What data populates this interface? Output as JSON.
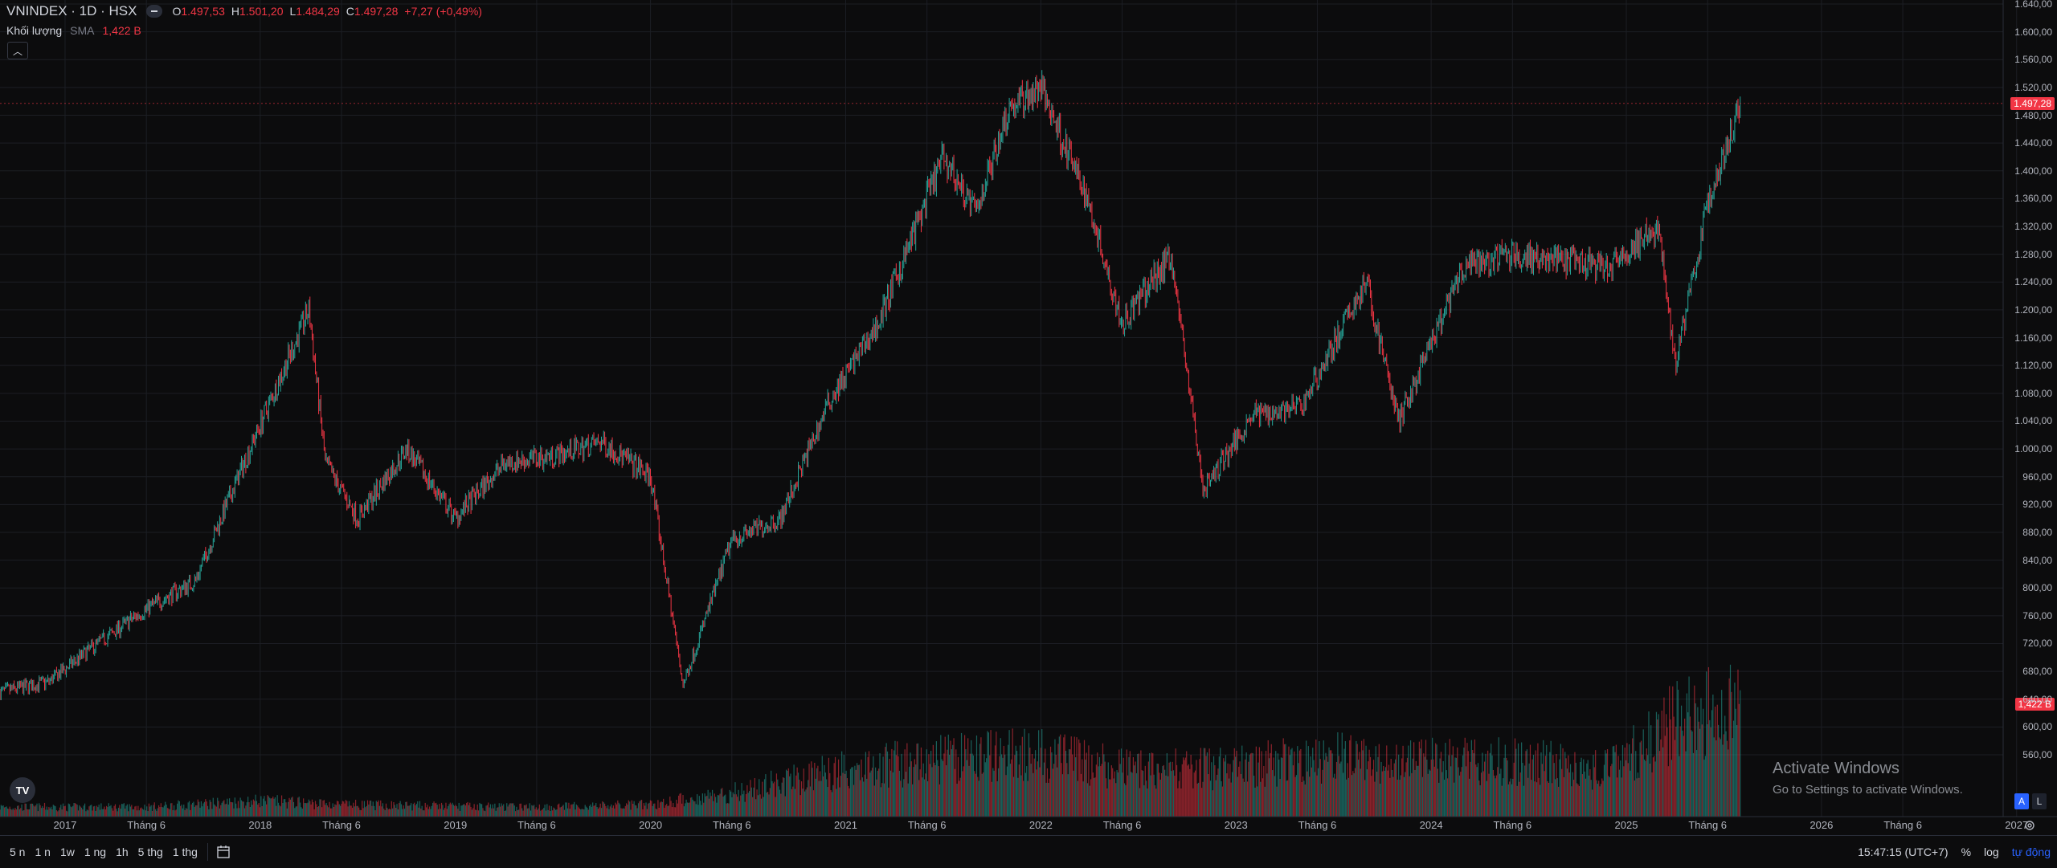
{
  "legend": {
    "symbol": "VNINDEX · 1D · HSX",
    "ohlc": [
      {
        "k": "O",
        "v": "1.497,53"
      },
      {
        "k": "H",
        "v": "1.501,20"
      },
      {
        "k": "L",
        "v": "1.484,29"
      },
      {
        "k": "C",
        "v": "1.497,28"
      }
    ],
    "change": "+7,27 (+0,49%)"
  },
  "volume_legend": {
    "label": "Khối lượng",
    "sma": "SMA",
    "value": "1,422 B"
  },
  "price_axis_labels": [
    "1.640,00",
    "1.600,00",
    "1.560,00",
    "1.520,00",
    "1.480,00",
    "1.440,00",
    "1.400,00",
    "1.360,00",
    "1.320,00",
    "1.280,00",
    "1.240,00",
    "1.200,00",
    "1.160,00",
    "1.120,00",
    "1.080,00",
    "1.040,00",
    "1.000,00",
    "960,00",
    "920,00",
    "880,00",
    "840,00",
    "800,00",
    "760,00",
    "720,00",
    "680,00",
    "640,00",
    "600,00",
    "560,00"
  ],
  "price_tag": "1.497,28",
  "volume_tag": "1,422 B",
  "time_axis_labels": [
    "2017",
    "Tháng 6",
    "2018",
    "Tháng 6",
    "2019",
    "Tháng 6",
    "2020",
    "Tháng 6",
    "2021",
    "Tháng 6",
    "2022",
    "Tháng 6",
    "2023",
    "Tháng 6",
    "2024",
    "Tháng 6",
    "2025",
    "Tháng 6",
    "2026",
    "Tháng 6",
    "2027"
  ],
  "bottom_bar": {
    "ranges": [
      "5 n",
      "1 n",
      "1w",
      "1 ng",
      "1h",
      "5 thg",
      "1 thg"
    ],
    "time": "15:47:15 (UTC+7)",
    "percent": "%",
    "log": "log",
    "auto": "tự động"
  },
  "watermark": {
    "title": "Activate Windows",
    "subtitle": "Go to Settings to activate Windows."
  },
  "axis_buttons": {
    "a": "A",
    "l": "L"
  },
  "logo": "TV",
  "colors": {
    "up": "#26a69a",
    "down": "#f23645",
    "background": "#0c0c0d",
    "grid": "#1c1e24",
    "accent": "#2962ff"
  },
  "chart_data": {
    "type": "candlestick",
    "title": "VNINDEX · 1D · HSX",
    "ylim": [
      540,
      1650
    ],
    "x_range": [
      "2016-09",
      "2027-02"
    ],
    "y_scale": "linear",
    "grid": true,
    "series": [
      {
        "name": "VNINDEX",
        "kind": "price",
        "x": [
          "2016-09",
          "2016-12",
          "2017-03",
          "2017-06",
          "2017-09",
          "2017-12",
          "2018-04",
          "2018-05",
          "2018-07",
          "2018-10",
          "2019-01",
          "2019-04",
          "2019-07",
          "2019-10",
          "2020-01",
          "2020-03",
          "2020-06",
          "2020-09",
          "2020-12",
          "2021-03",
          "2021-07",
          "2021-09",
          "2021-11",
          "2022-01",
          "2022-04",
          "2022-06",
          "2022-09",
          "2022-11",
          "2023-02",
          "2023-05",
          "2023-09",
          "2023-11",
          "2024-03",
          "2024-06",
          "2024-09",
          "2024-12",
          "2025-03",
          "2025-04",
          "2025-06",
          "2025-08"
        ],
        "y": [
          650,
          665,
          720,
          770,
          810,
          980,
          1200,
          980,
          900,
          1000,
          900,
          980,
          990,
          1010,
          960,
          660,
          870,
          900,
          1070,
          1180,
          1420,
          1340,
          1490,
          1520,
          1350,
          1180,
          1280,
          940,
          1050,
          1060,
          1240,
          1040,
          1260,
          1280,
          1270,
          1260,
          1320,
          1120,
          1350,
          1497
        ]
      },
      {
        "name": "Khối lượng",
        "kind": "volume",
        "unit": "B",
        "x": [
          "2016-09",
          "2017-06",
          "2018-01",
          "2018-06",
          "2019-01",
          "2019-06",
          "2020-01",
          "2020-06",
          "2021-01",
          "2021-06",
          "2021-12",
          "2022-06",
          "2022-12",
          "2023-06",
          "2023-12",
          "2024-06",
          "2024-12",
          "2025-04",
          "2025-08"
        ],
        "y": [
          0.12,
          0.12,
          0.2,
          0.15,
          0.13,
          0.12,
          0.15,
          0.3,
          0.6,
          0.7,
          0.8,
          0.6,
          0.6,
          0.75,
          0.7,
          0.7,
          0.6,
          1.2,
          1.422
        ]
      }
    ]
  }
}
